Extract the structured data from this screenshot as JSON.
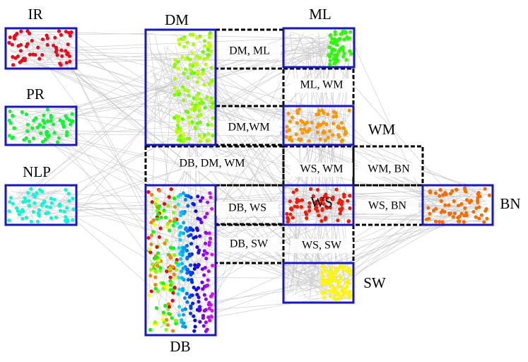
{
  "clusters": [
    {
      "label": "IR"
    },
    {
      "label": "PR"
    },
    {
      "label": "NLP"
    },
    {
      "label": "DM"
    },
    {
      "label": "ML"
    },
    {
      "label": "WM"
    },
    {
      "label": "WS"
    },
    {
      "label": "BN"
    },
    {
      "label": "SW"
    },
    {
      "label": "DB"
    }
  ],
  "overlaps": [
    {
      "label": "DM, ML"
    },
    {
      "label": "ML, WM"
    },
    {
      "label": "DM,WM"
    },
    {
      "label": "DB, DM, WM"
    },
    {
      "label": "WS, WM"
    },
    {
      "label": "WM, BN"
    },
    {
      "label": "DB, WS"
    },
    {
      "label": "WS, BN"
    },
    {
      "label": "DB, SW"
    },
    {
      "label": "WS, SW"
    }
  ]
}
